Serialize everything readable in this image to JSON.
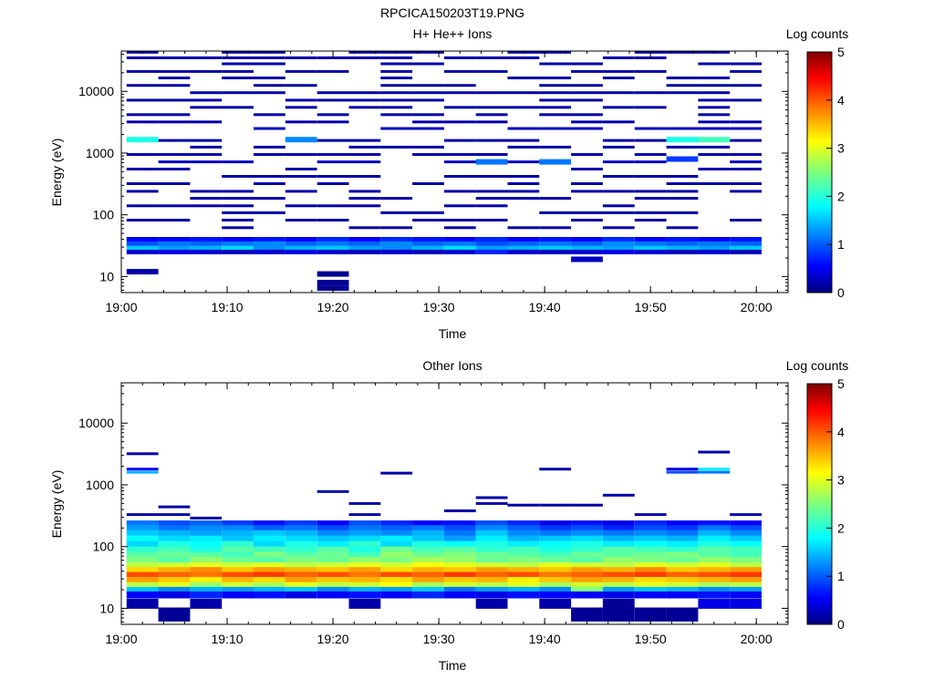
{
  "figure": {
    "title": "RPCICA150203T19.PNG"
  },
  "colorbar": {
    "label": "Log counts",
    "ticks": [
      "0",
      "1",
      "2",
      "3",
      "4",
      "5"
    ],
    "colormap": "jet",
    "range": [
      0,
      5
    ]
  },
  "chart_data": [
    {
      "type": "heatmap",
      "title": "H+ He++ Ions",
      "xlabel": "Time",
      "ylabel": "Energy (eV)",
      "x_tick_labels": [
        "19:00",
        "19:10",
        "19:20",
        "19:30",
        "19:40",
        "19:50",
        "20:00"
      ],
      "y_tick_labels": [
        "10",
        "100",
        "1000",
        "10000"
      ],
      "yscale": "log",
      "xlim": [
        "19:00",
        "20:03"
      ],
      "ylim": [
        5.5,
        45000
      ],
      "colorbar_label": "Log counts",
      "time_bins": [
        "19:02",
        "19:05",
        "19:08",
        "19:11",
        "19:14",
        "19:17",
        "19:20",
        "19:23",
        "19:26",
        "19:29",
        "19:32",
        "19:35",
        "19:38",
        "19:41",
        "19:44",
        "19:47",
        "19:50",
        "19:53",
        "19:56",
        "19:59"
      ],
      "sparse_bands": [
        {
          "energy_eV": 43000,
          "log_counts": 0.2
        },
        {
          "energy_eV": 35000,
          "log_counts": 0.2
        },
        {
          "energy_eV": 28000,
          "log_counts": 0.2
        },
        {
          "energy_eV": 21000,
          "log_counts": 0.2
        },
        {
          "energy_eV": 16500,
          "log_counts": 0.2
        },
        {
          "energy_eV": 12500,
          "log_counts": 0.2
        },
        {
          "energy_eV": 9500,
          "log_counts": 0.2
        },
        {
          "energy_eV": 7200,
          "log_counts": 0.2
        },
        {
          "energy_eV": 5500,
          "log_counts": 0.2
        },
        {
          "energy_eV": 4200,
          "log_counts": 0.2
        },
        {
          "energy_eV": 3200,
          "log_counts": 0.2
        },
        {
          "energy_eV": 2500,
          "log_counts": 0.3
        },
        {
          "energy_eV": 1600,
          "log_counts": 0.2
        },
        {
          "energy_eV": 1250,
          "log_counts": 0.2
        },
        {
          "energy_eV": 950,
          "log_counts": 0.2
        },
        {
          "energy_eV": 720,
          "log_counts": 0.3
        },
        {
          "energy_eV": 550,
          "log_counts": 0.2
        },
        {
          "energy_eV": 420,
          "log_counts": 0.2
        },
        {
          "energy_eV": 320,
          "log_counts": 0.2
        },
        {
          "energy_eV": 240,
          "log_counts": 0.2
        },
        {
          "energy_eV": 185,
          "log_counts": 0.2
        },
        {
          "energy_eV": 140,
          "log_counts": 0.2
        },
        {
          "energy_eV": 108,
          "log_counts": 0.2
        },
        {
          "energy_eV": 82,
          "log_counts": 0.2
        },
        {
          "energy_eV": 62,
          "log_counts": 0.2
        }
      ],
      "dense_rows": [
        {
          "energy_eV": 40,
          "log_counts": [
            0.6,
            0.6,
            0.7,
            0.6,
            0.7,
            0.6,
            0.8,
            0.6,
            0.8,
            0.7,
            0.6,
            0.8,
            0.6,
            0.7,
            0.6,
            0.8,
            0.6,
            0.7,
            0.6,
            0.7
          ]
        },
        {
          "energy_eV": 34,
          "log_counts": [
            1.0,
            1.2,
            1.1,
            1.2,
            1.3,
            1.1,
            1.2,
            1.1,
            1.3,
            1.1,
            1.2,
            1.0,
            1.1,
            1.2,
            1.1,
            1.3,
            1.2,
            1.1,
            1.2,
            1.1
          ]
        },
        {
          "energy_eV": 29,
          "log_counts": [
            1.6,
            1.4,
            1.5,
            1.7,
            1.3,
            1.5,
            1.6,
            1.4,
            1.3,
            1.5,
            1.7,
            1.4,
            1.5,
            1.6,
            1.5,
            1.4,
            1.6,
            1.5,
            1.4,
            1.6
          ]
        },
        {
          "energy_eV": 25,
          "log_counts": [
            0.4,
            0.5,
            0.4,
            0.3,
            0.4,
            0.5,
            0.4,
            0.3,
            0.4,
            0.3,
            0.4,
            0.8,
            0.4,
            0.3,
            0.4,
            0.5,
            0.4,
            0.3,
            0.4,
            0.3
          ]
        }
      ],
      "highlights": [
        {
          "time_bin": 0,
          "energy_eV": 1650,
          "log_counts": 2.0
        },
        {
          "time_bin": 17,
          "energy_eV": 1650,
          "log_counts": 2.0
        },
        {
          "time_bin": 18,
          "energy_eV": 1650,
          "log_counts": 2.2
        },
        {
          "time_bin": 5,
          "energy_eV": 1650,
          "log_counts": 1.3
        },
        {
          "time_bin": 11,
          "energy_eV": 720,
          "log_counts": 1.2
        },
        {
          "time_bin": 13,
          "energy_eV": 720,
          "log_counts": 1.2
        },
        {
          "time_bin": 17,
          "energy_eV": 800,
          "log_counts": 0.9
        },
        {
          "time_bin": 0,
          "energy_eV": 12,
          "log_counts": 0.2
        },
        {
          "time_bin": 6,
          "energy_eV": 11,
          "log_counts": 0.1
        },
        {
          "time_bin": 6,
          "energy_eV": 8,
          "log_counts": 0.1
        },
        {
          "time_bin": 6,
          "energy_eV": 6.5,
          "log_counts": 0.1
        },
        {
          "time_bin": 14,
          "energy_eV": 19,
          "log_counts": 0.3
        }
      ]
    },
    {
      "type": "heatmap",
      "title": "Other Ions",
      "xlabel": "Time",
      "ylabel": "Energy (eV)",
      "x_tick_labels": [
        "19:00",
        "19:10",
        "19:20",
        "19:30",
        "19:40",
        "19:50",
        "20:00"
      ],
      "y_tick_labels": [
        "10",
        "100",
        "1000",
        "10000"
      ],
      "yscale": "log",
      "xlim": [
        "19:00",
        "20:03"
      ],
      "ylim": [
        5.5,
        45000
      ],
      "colorbar_label": "Log counts",
      "time_bins": [
        "19:02",
        "19:05",
        "19:08",
        "19:11",
        "19:14",
        "19:17",
        "19:20",
        "19:23",
        "19:26",
        "19:29",
        "19:32",
        "19:35",
        "19:38",
        "19:41",
        "19:44",
        "19:47",
        "19:50",
        "19:53",
        "19:56",
        "19:59"
      ],
      "dense_rows": [
        {
          "energy_eV": 240,
          "log_counts": [
            1.2,
            1.0,
            1.1,
            0.9,
            0.7,
            0.9,
            0.6,
            1.0,
            0.8,
            0.6,
            0.7,
            1.0,
            0.8,
            0.5,
            0.7,
            0.5,
            0.8,
            0.6,
            0.7,
            0.6
          ]
        },
        {
          "energy_eV": 200,
          "log_counts": [
            1.4,
            1.2,
            1.3,
            1.3,
            1.1,
            1.2,
            1.0,
            1.2,
            1.1,
            1.2,
            1.0,
            1.3,
            1.1,
            0.9,
            1.0,
            0.8,
            1.0,
            0.9,
            1.2,
            1.0
          ]
        },
        {
          "energy_eV": 165,
          "log_counts": [
            1.6,
            1.5,
            1.4,
            1.5,
            1.6,
            1.5,
            1.3,
            1.4,
            1.3,
            1.5,
            1.2,
            1.6,
            1.3,
            1.2,
            1.3,
            1.2,
            1.3,
            1.2,
            1.5,
            1.3
          ]
        },
        {
          "energy_eV": 135,
          "log_counts": [
            1.9,
            1.7,
            1.8,
            1.6,
            1.8,
            1.7,
            1.6,
            1.7,
            1.8,
            1.6,
            1.4,
            1.8,
            1.5,
            1.6,
            1.7,
            1.5,
            1.6,
            1.5,
            1.8,
            1.6
          ]
        },
        {
          "energy_eV": 110,
          "log_counts": [
            1.7,
            2.0,
            1.9,
            2.1,
            1.7,
            2.0,
            1.8,
            2.1,
            1.7,
            2.0,
            1.9,
            2.0,
            1.8,
            1.9,
            2.0,
            1.8,
            1.9,
            1.8,
            2.0,
            1.9
          ]
        },
        {
          "energy_eV": 90,
          "log_counts": [
            2.1,
            2.2,
            2.0,
            2.3,
            2.2,
            2.1,
            2.3,
            2.0,
            2.4,
            2.2,
            2.3,
            2.1,
            2.2,
            2.0,
            2.1,
            2.3,
            2.2,
            2.1,
            2.3,
            2.2
          ]
        },
        {
          "energy_eV": 74,
          "log_counts": [
            2.3,
            2.4,
            2.3,
            2.2,
            2.5,
            2.3,
            2.4,
            2.2,
            2.6,
            2.4,
            2.5,
            2.4,
            2.3,
            2.2,
            2.4,
            2.3,
            2.4,
            2.5,
            2.3,
            2.2
          ]
        },
        {
          "energy_eV": 61,
          "log_counts": [
            2.5,
            2.3,
            2.6,
            2.4,
            2.3,
            2.5,
            2.4,
            2.6,
            2.5,
            2.7,
            2.6,
            2.4,
            2.5,
            2.4,
            2.3,
            2.6,
            2.5,
            2.4,
            2.6,
            2.5
          ]
        },
        {
          "energy_eV": 50,
          "log_counts": [
            2.8,
            2.9,
            3.0,
            2.9,
            3.0,
            2.8,
            2.9,
            3.0,
            2.9,
            3.1,
            3.0,
            2.9,
            2.8,
            3.0,
            2.9,
            2.8,
            3.0,
            2.9,
            3.0,
            2.8
          ]
        },
        {
          "energy_eV": 42,
          "log_counts": [
            3.3,
            3.5,
            3.7,
            3.4,
            3.6,
            3.5,
            3.4,
            3.6,
            3.3,
            3.5,
            3.4,
            3.6,
            3.5,
            3.4,
            3.6,
            3.5,
            3.7,
            3.4,
            3.5,
            3.6
          ]
        },
        {
          "energy_eV": 35,
          "log_counts": [
            4.0,
            3.9,
            3.8,
            4.0,
            4.1,
            3.9,
            4.0,
            3.8,
            4.0,
            3.9,
            4.1,
            3.9,
            4.0,
            3.8,
            3.9,
            4.0,
            4.1,
            3.9,
            4.0,
            4.1
          ]
        },
        {
          "energy_eV": 29,
          "log_counts": [
            3.6,
            3.4,
            3.2,
            3.5,
            3.3,
            3.6,
            3.4,
            3.5,
            3.3,
            3.6,
            3.4,
            3.5,
            3.2,
            3.4,
            3.6,
            3.5,
            3.3,
            3.4,
            3.5,
            3.6
          ]
        },
        {
          "energy_eV": 24,
          "log_counts": [
            2.8,
            3.0,
            2.6,
            2.9,
            2.7,
            3.0,
            2.8,
            2.9,
            3.1,
            2.7,
            2.9,
            2.8,
            3.0,
            2.7,
            2.9,
            2.8,
            3.0,
            2.9,
            2.7,
            2.8
          ]
        },
        {
          "energy_eV": 20,
          "log_counts": [
            1.6,
            1.3,
            1.5,
            1.4,
            1.5,
            1.6,
            1.3,
            1.5,
            1.4,
            1.6,
            1.2,
            1.4,
            1.5,
            1.3,
            2.5,
            1.4,
            1.6,
            1.5,
            1.3,
            1.4
          ]
        },
        {
          "energy_eV": 16.5,
          "log_counts": [
            0.6,
            0.5,
            0.8,
            0.6,
            0.7,
            0.5,
            0.6,
            0.7,
            0.6,
            0.8,
            0.6,
            0.5,
            0.7,
            0.6,
            0.6,
            0.5,
            0.6,
            0.6,
            0.7,
            0.6
          ]
        },
        {
          "energy_eV": 13,
          "log_counts": [
            0.2,
            null,
            0.2,
            null,
            null,
            null,
            null,
            0.2,
            null,
            null,
            null,
            0.2,
            null,
            0.2,
            null,
            0.1,
            null,
            null,
            0.5,
            0.5
          ]
        },
        {
          "energy_eV": 11,
          "log_counts": [
            0.2,
            null,
            0.2,
            null,
            null,
            null,
            null,
            0.2,
            null,
            null,
            null,
            0.2,
            null,
            0.2,
            null,
            0.1,
            null,
            null,
            0.5,
            0.5
          ]
        },
        {
          "energy_eV": 9,
          "log_counts": [
            null,
            0.1,
            null,
            null,
            null,
            null,
            null,
            null,
            null,
            null,
            null,
            null,
            null,
            null,
            0.1,
            0.1,
            0.1,
            0.1,
            null,
            null
          ]
        },
        {
          "energy_eV": 7,
          "log_counts": [
            null,
            0.1,
            null,
            null,
            null,
            null,
            null,
            null,
            null,
            null,
            null,
            null,
            null,
            null,
            0.1,
            0.1,
            0.1,
            0.1,
            null,
            null
          ]
        }
      ],
      "sparse_marks": [
        {
          "time_bin": 0,
          "energy_eV": 3200,
          "log_counts": 0.2
        },
        {
          "time_bin": 0,
          "energy_eV": 1800,
          "log_counts": 0.6
        },
        {
          "time_bin": 0,
          "energy_eV": 1600,
          "log_counts": 1.5
        },
        {
          "time_bin": 0,
          "energy_eV": 330,
          "log_counts": 0.2
        },
        {
          "time_bin": 1,
          "energy_eV": 440,
          "log_counts": 0.2
        },
        {
          "time_bin": 1,
          "energy_eV": 330,
          "log_counts": 0.2
        },
        {
          "time_bin": 2,
          "energy_eV": 290,
          "log_counts": 0.2
        },
        {
          "time_bin": 6,
          "energy_eV": 780,
          "log_counts": 0.2
        },
        {
          "time_bin": 7,
          "energy_eV": 500,
          "log_counts": 0.2
        },
        {
          "time_bin": 7,
          "energy_eV": 330,
          "log_counts": 0.2
        },
        {
          "time_bin": 8,
          "energy_eV": 1550,
          "log_counts": 0.2
        },
        {
          "time_bin": 10,
          "energy_eV": 380,
          "log_counts": 0.2
        },
        {
          "time_bin": 11,
          "energy_eV": 620,
          "log_counts": 0.2
        },
        {
          "time_bin": 11,
          "energy_eV": 500,
          "log_counts": 0.2
        },
        {
          "time_bin": 12,
          "energy_eV": 470,
          "log_counts": 0.2
        },
        {
          "time_bin": 13,
          "energy_eV": 1800,
          "log_counts": 0.2
        },
        {
          "time_bin": 13,
          "energy_eV": 470,
          "log_counts": 0.2
        },
        {
          "time_bin": 14,
          "energy_eV": 470,
          "log_counts": 0.2
        },
        {
          "time_bin": 15,
          "energy_eV": 680,
          "log_counts": 0.2
        },
        {
          "time_bin": 16,
          "energy_eV": 330,
          "log_counts": 0.2
        },
        {
          "time_bin": 17,
          "energy_eV": 1800,
          "log_counts": 0.5
        },
        {
          "time_bin": 17,
          "energy_eV": 1600,
          "log_counts": 1.0
        },
        {
          "time_bin": 18,
          "energy_eV": 3400,
          "log_counts": 0.2
        },
        {
          "time_bin": 18,
          "energy_eV": 1800,
          "log_counts": 1.8
        },
        {
          "time_bin": 18,
          "energy_eV": 1600,
          "log_counts": 1.2
        },
        {
          "time_bin": 19,
          "energy_eV": 330,
          "log_counts": 0.2
        }
      ]
    }
  ]
}
